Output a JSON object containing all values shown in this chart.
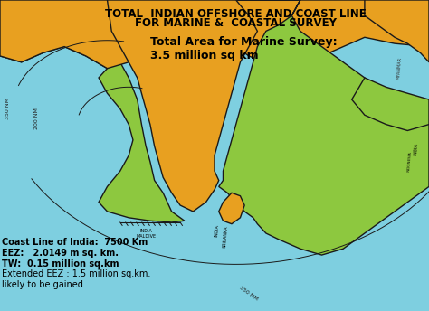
{
  "title_line1": "TOTAL  INDIAN OFFSHORE AND COAST LINE",
  "title_line2": "FOR MARINE &  COASTAL SURVEY",
  "title_color": "#000000",
  "title_fontsize": 8.5,
  "bg_color": "#7ECFE0",
  "land_india_color": "#E8A020",
  "eez_color": "#8DC83F",
  "annotation_main": "Total Area for Marine Survey:\n3.5 million sq km",
  "annotation_color": "#000000",
  "annotation_fontsize": 9,
  "legend_lines": [
    "Coast Line of India:  7500 Km",
    "EEZ:   2.0149 m sq. km.",
    "TW:  0.15 million sq.km",
    "Extended EEZ : 1.5 million sq.km.",
    "likely to be gained"
  ],
  "legend_fontsize": 7.0,
  "legend_color": "#000000",
  "border_color": "#1a1a1a",
  "border_lw": 1.0,
  "figsize": [
    4.74,
    3.44
  ],
  "dpi": 100,
  "xlim": [
    0,
    10
  ],
  "ylim": [
    0,
    10
  ]
}
